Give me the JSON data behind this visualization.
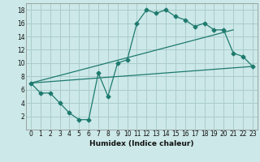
{
  "xlabel": "Humidex (Indice chaleur)",
  "bg_color": "#cce8e8",
  "grid_color": "#aacccc",
  "line_color": "#1e7a6e",
  "xlim": [
    -0.5,
    23.5
  ],
  "ylim": [
    0,
    19
  ],
  "xticks": [
    0,
    1,
    2,
    3,
    4,
    5,
    6,
    7,
    8,
    9,
    10,
    11,
    12,
    13,
    14,
    15,
    16,
    17,
    18,
    19,
    20,
    21,
    22,
    23
  ],
  "yticks": [
    2,
    4,
    6,
    8,
    10,
    12,
    14,
    16,
    18
  ],
  "main_x": [
    0,
    1,
    2,
    3,
    4,
    5,
    6,
    7,
    8,
    9,
    10,
    11,
    12,
    13,
    14,
    15,
    16,
    17,
    18,
    19,
    20,
    21,
    22,
    23
  ],
  "main_y": [
    7.0,
    5.5,
    5.5,
    4.0,
    2.5,
    1.5,
    1.5,
    8.5,
    5.0,
    10.0,
    10.5,
    16.0,
    18.0,
    17.5,
    18.0,
    17.0,
    16.5,
    15.5,
    16.0,
    15.0,
    15.0,
    11.5,
    11.0,
    9.5
  ],
  "trend1_x": [
    0,
    23
  ],
  "trend1_y": [
    7.0,
    9.5
  ],
  "trend2_x": [
    0,
    21
  ],
  "trend2_y": [
    7.0,
    15.0
  ],
  "marker": "D",
  "markersize": 2.5,
  "linewidth": 0.9,
  "tick_fontsize": 5.5,
  "xlabel_fontsize": 6.5
}
